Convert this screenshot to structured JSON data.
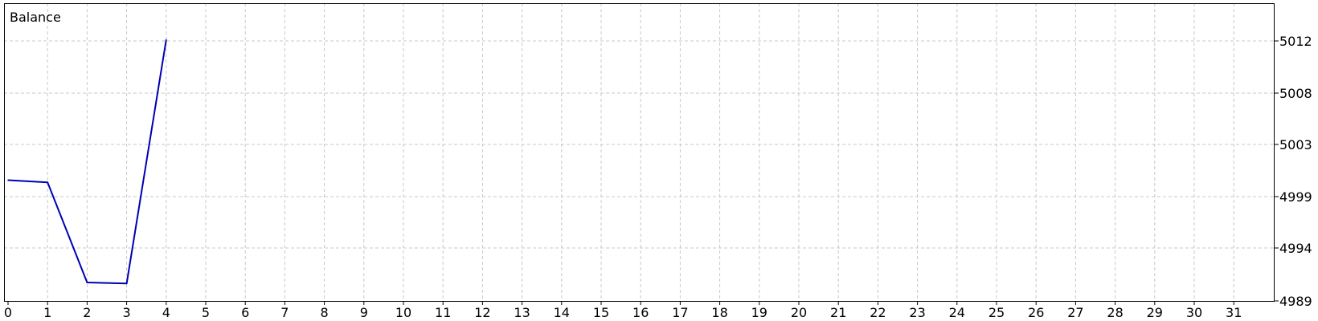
{
  "chart_data": {
    "type": "line",
    "title": "Balance",
    "xlabel": "",
    "ylabel": "",
    "x": [
      0,
      1,
      2,
      3,
      4
    ],
    "series": [
      {
        "values": [
          5000.1,
          4999.9,
          4990.7,
          4990.6,
          5013.0
        ]
      }
    ],
    "x_ticks": [
      "0",
      "1",
      "2",
      "3",
      "4",
      "5",
      "6",
      "7",
      "8",
      "9",
      "10",
      "11",
      "12",
      "13",
      "14",
      "15",
      "16",
      "17",
      "18",
      "19",
      "20",
      "21",
      "22",
      "23",
      "24",
      "25",
      "26",
      "27",
      "28",
      "29",
      "30",
      "31"
    ],
    "y_ticks": [
      "5012",
      "5008",
      "5003",
      "4999",
      "4994",
      "4989"
    ],
    "y_axis_side": "right",
    "grid": true,
    "legend": "none",
    "colors": {
      "line": "#0000b4",
      "grid": "#c8c8c8",
      "frame": "#000000",
      "background": "#ffffff"
    }
  }
}
